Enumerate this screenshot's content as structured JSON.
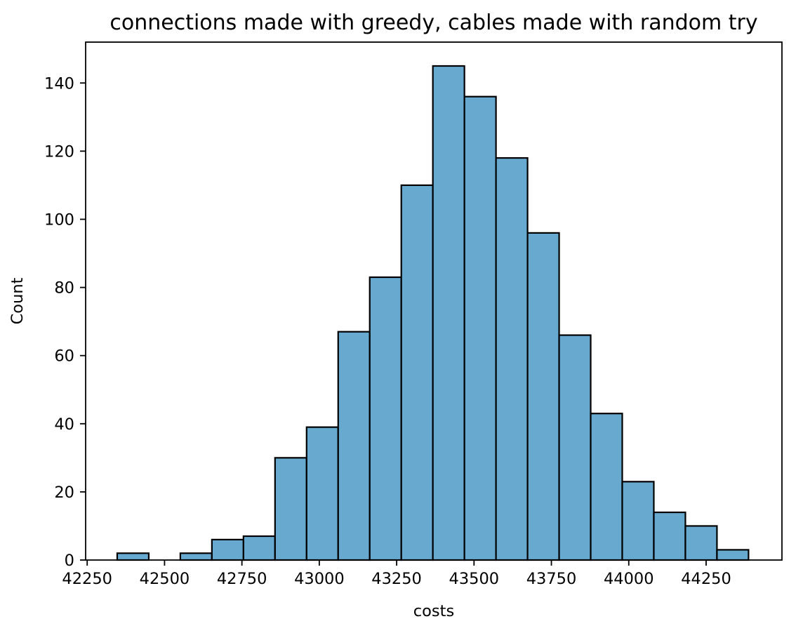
{
  "chart_data": {
    "type": "bar",
    "title": "connections made with greedy, cables made with random try",
    "xlabel": "costs",
    "ylabel": "Count",
    "xlim": [
      42245,
      44495
    ],
    "ylim": [
      0,
      152
    ],
    "x_ticks": [
      42250,
      42500,
      42750,
      43000,
      43250,
      43500,
      43750,
      44000,
      44250
    ],
    "y_ticks": [
      0,
      20,
      40,
      60,
      80,
      100,
      120,
      140
    ],
    "grid": false,
    "bins": [
      {
        "start": 42347,
        "end": 42449,
        "count": 2
      },
      {
        "start": 42449,
        "end": 42551,
        "count": 0
      },
      {
        "start": 42551,
        "end": 42653,
        "count": 2
      },
      {
        "start": 42653,
        "end": 42755,
        "count": 6
      },
      {
        "start": 42755,
        "end": 42857,
        "count": 7
      },
      {
        "start": 42857,
        "end": 42959,
        "count": 30
      },
      {
        "start": 42959,
        "end": 43061,
        "count": 39
      },
      {
        "start": 43061,
        "end": 43163,
        "count": 67
      },
      {
        "start": 43163,
        "end": 43265,
        "count": 83
      },
      {
        "start": 43265,
        "end": 43367,
        "count": 110
      },
      {
        "start": 43367,
        "end": 43469,
        "count": 145
      },
      {
        "start": 43469,
        "end": 43571,
        "count": 136
      },
      {
        "start": 43571,
        "end": 43673,
        "count": 118
      },
      {
        "start": 43673,
        "end": 43775,
        "count": 96
      },
      {
        "start": 43775,
        "end": 43877,
        "count": 66
      },
      {
        "start": 43877,
        "end": 43979,
        "count": 43
      },
      {
        "start": 43979,
        "end": 44081,
        "count": 23
      },
      {
        "start": 44081,
        "end": 44183,
        "count": 14
      },
      {
        "start": 44183,
        "end": 44285,
        "count": 10
      },
      {
        "start": 44285,
        "end": 44387,
        "count": 3
      }
    ],
    "colors": {
      "bar_fill": "#67a9cf",
      "bar_edge": "#000000"
    }
  }
}
